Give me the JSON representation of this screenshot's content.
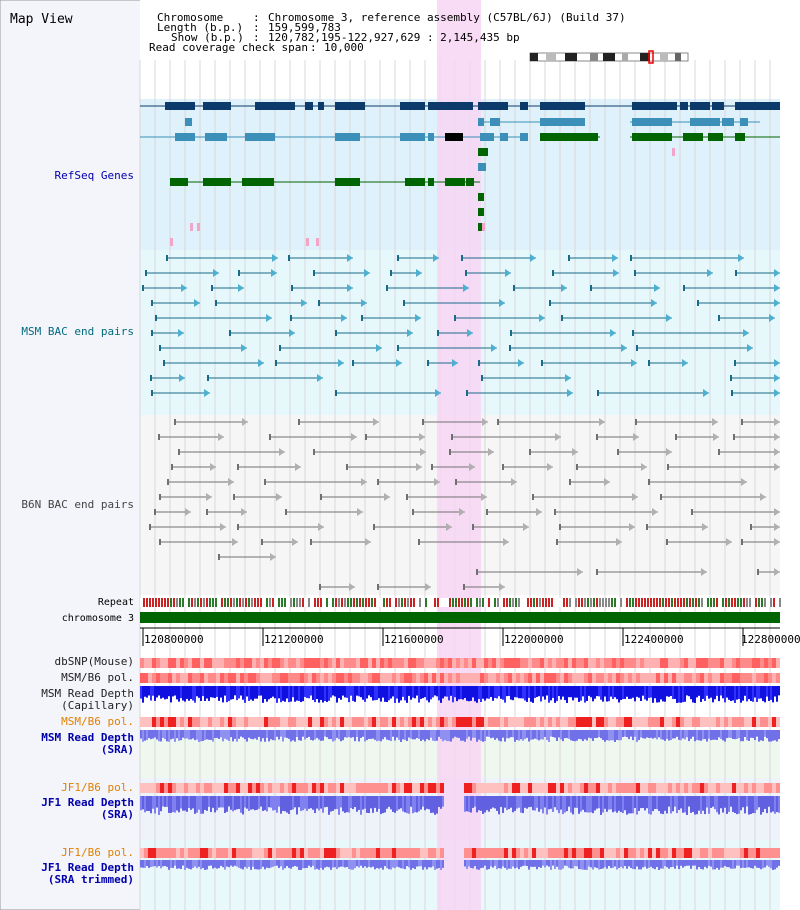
{
  "title": "Map View",
  "header": {
    "lines": [
      {
        "key": "Chromosome",
        "value": "Chromosome 3, reference assembly (C57BL/6J) (Build 37)"
      },
      {
        "key": "Length (b.p.)",
        "value": "159,599,783"
      },
      {
        "key": "Show (b.p.)",
        "value": "120,782,195-122,927,629 : 2,145,435 bp"
      },
      {
        "key": "Read coverage check span",
        "value": "10,000"
      }
    ]
  },
  "tracks": {
    "refseq": "RefSeq Genes",
    "msm_bac": "MSM BAC end pairs",
    "b6n_bac": "B6N BAC end pairs",
    "repeat": "Repeat",
    "chromosome": "chromosome 3",
    "dbsnp": "dbSNP(Mouse)",
    "msm_b6_pol": "MSM/B6 pol.",
    "msm_read_depth_cap_1": "MSM Read Depth",
    "msm_read_depth_cap_2": "(Capillary)",
    "msm_b6_pol_2": "MSM/B6 pol.",
    "msm_read_depth_sra_1": "MSM Read Depth",
    "msm_read_depth_sra_2": "(SRA)",
    "jf1_b6_pol": "JF1/B6 pol.",
    "jf1_read_depth_sra_1": "JF1 Read Depth",
    "jf1_read_depth_sra_2": "(SRA)",
    "jf1_b6_pol_2": "JF1/B6 pol.",
    "jf1_read_depth_trim_1": "JF1 Read Depth",
    "jf1_read_depth_trim_2": "(SRA trimmed)"
  },
  "axis": {
    "ticks": [
      "120800000",
      "121200000",
      "121600000",
      "122000000",
      "122400000",
      "122800000"
    ]
  },
  "colors": {
    "gene_dark": "#0b3a6b",
    "gene_mid": "#3b8fb8",
    "gene_green": "#006400",
    "msm_pair": "#1a6a8a",
    "b6n_pair": "#707070",
    "highlight": "#f7d6f3",
    "label_blue": "#0000aa",
    "label_orange": "#e08000",
    "label_teal": "#006b7d"
  }
}
